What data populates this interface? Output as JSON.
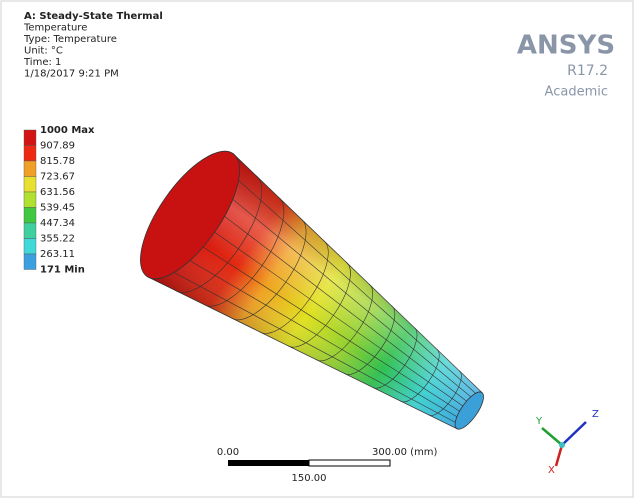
{
  "header": {
    "lines": [
      "A: Steady-State Thermal",
      "Temperature",
      "Type: Temperature",
      "Unit: °C",
      "Time: 1",
      "1/18/2017 9:21 PM"
    ]
  },
  "logo": {
    "brand": "ANSYS",
    "version": "R17.2",
    "edition": "Academic"
  },
  "legend": {
    "labels": [
      "1000 Max",
      "907.89",
      "815.78",
      "723.67",
      "631.56",
      "539.45",
      "447.34",
      "355.22",
      "263.11",
      "171 Min"
    ]
  },
  "scale_bar": {
    "start": "0.00",
    "end": "300.00 (mm)",
    "middle": "150.00"
  },
  "triad": {
    "x": "X",
    "y": "Y",
    "z": "Z"
  }
}
